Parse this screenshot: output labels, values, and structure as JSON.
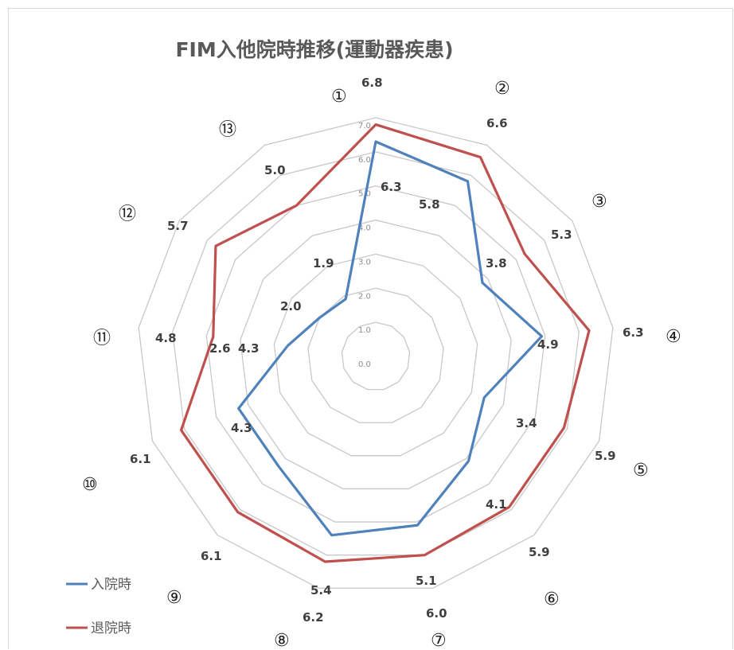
{
  "chart_data": {
    "type": "radar",
    "title": "FIM入他院時推移(運動器疾患)",
    "categories": [
      "①",
      "②",
      "③",
      "④",
      "⑤",
      "⑥",
      "⑦",
      "⑧",
      "⑨",
      "⑩",
      "⑪",
      "⑫",
      "⑬"
    ],
    "axis_ticks": [
      "0.0",
      "1.0",
      "2.0",
      "3.0",
      "4.0",
      "5.0",
      "6.0",
      "7.0"
    ],
    "rlim": [
      0,
      7
    ],
    "grid": true,
    "legend_position": "bottom-left",
    "series": [
      {
        "name": "入院時",
        "color": "#4f81bd",
        "values": [
          6.3,
          5.8,
          3.8,
          4.9,
          3.4,
          4.1,
          5.1,
          5.4,
          4.3,
          4.3,
          2.6,
          2.0,
          1.9
        ],
        "labels": [
          "6.3",
          "5.8",
          "3.8",
          "4.9",
          "3.4",
          "4.1",
          "5.1",
          "5.4",
          "4.3",
          "4.3",
          "2.6",
          "2.0",
          "1.9"
        ]
      },
      {
        "name": "退院時",
        "color": "#c0504d",
        "values": [
          6.8,
          6.6,
          5.3,
          6.3,
          5.9,
          5.9,
          6.0,
          6.2,
          6.1,
          6.1,
          4.8,
          5.7,
          5.0
        ],
        "labels": [
          "6.8",
          "6.6",
          "5.3",
          "6.3",
          "5.9",
          "5.9",
          "6.0",
          "6.2",
          "6.1",
          "6.1",
          "4.8",
          "5.7",
          "5.0"
        ]
      }
    ]
  }
}
